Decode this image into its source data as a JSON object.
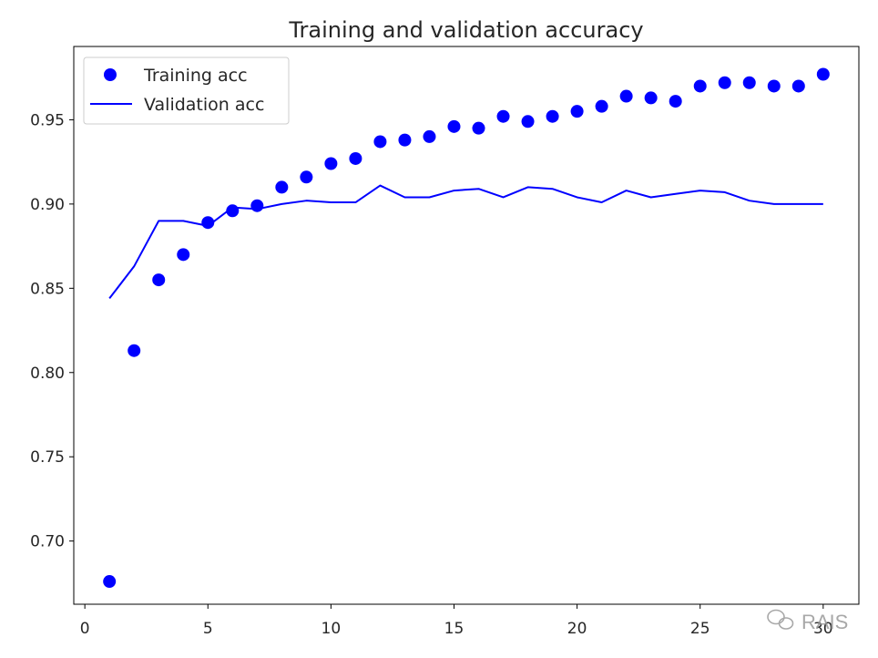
{
  "chart_data": {
    "type": "line",
    "title": "Training and validation accuracy",
    "xlabel": "",
    "ylabel": "",
    "xlim": [
      -0.45,
      31.45
    ],
    "ylim": [
      0.6625,
      0.9935
    ],
    "x_ticks": [
      0,
      5,
      10,
      15,
      20,
      25,
      30
    ],
    "x_tick_labels": [
      "0",
      "5",
      "10",
      "15",
      "20",
      "25",
      "30"
    ],
    "y_ticks": [
      0.7,
      0.75,
      0.8,
      0.85,
      0.9,
      0.95
    ],
    "y_tick_labels": [
      "0.70",
      "0.75",
      "0.80",
      "0.85",
      "0.90",
      "0.95"
    ],
    "grid": false,
    "legend_position": "top-left",
    "x": [
      1,
      2,
      3,
      4,
      5,
      6,
      7,
      8,
      9,
      10,
      11,
      12,
      13,
      14,
      15,
      16,
      17,
      18,
      19,
      20,
      21,
      22,
      23,
      24,
      25,
      26,
      27,
      28,
      29,
      30
    ],
    "series": [
      {
        "name": "Training acc",
        "style": "markers",
        "color": "#0000ff",
        "values": [
          0.676,
          0.813,
          0.855,
          0.87,
          0.889,
          0.896,
          0.899,
          0.91,
          0.916,
          0.924,
          0.927,
          0.937,
          0.938,
          0.94,
          0.946,
          0.945,
          0.952,
          0.949,
          0.952,
          0.955,
          0.958,
          0.964,
          0.963,
          0.961,
          0.97,
          0.972,
          0.972,
          0.97,
          0.97,
          0.977
        ]
      },
      {
        "name": "Validation acc",
        "style": "line",
        "color": "#0000ff",
        "values": [
          0.844,
          0.863,
          0.89,
          0.89,
          0.887,
          0.898,
          0.897,
          0.9,
          0.902,
          0.901,
          0.901,
          0.911,
          0.904,
          0.904,
          0.908,
          0.909,
          0.904,
          0.91,
          0.909,
          0.904,
          0.901,
          0.908,
          0.904,
          0.906,
          0.908,
          0.907,
          0.902,
          0.9,
          0.9,
          0.9
        ]
      }
    ]
  },
  "watermark": {
    "text": "RAIS"
  }
}
